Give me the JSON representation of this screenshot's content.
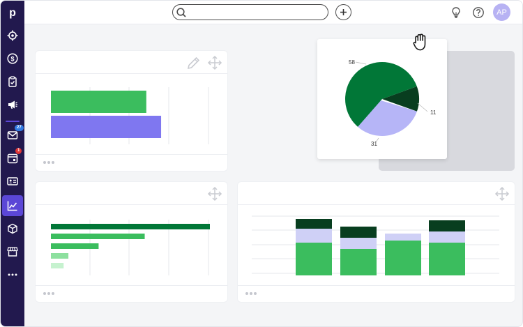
{
  "header": {
    "search": {
      "placeholder": "",
      "value": ""
    },
    "user_initials": "AP"
  },
  "sidebar": {
    "logo": "p",
    "items": [
      {
        "id": "leads",
        "icon": "target-icon"
      },
      {
        "id": "deals",
        "icon": "dollar-icon"
      },
      {
        "id": "activities",
        "icon": "clipboard-check-icon"
      },
      {
        "id": "campaigns",
        "icon": "megaphone-icon"
      },
      {
        "id": "mail",
        "icon": "envelope-icon",
        "badge": "27",
        "badge_color": "#317ae2"
      },
      {
        "id": "calendar",
        "icon": "calendar-icon",
        "badge": "1",
        "badge_color": "#e03535"
      },
      {
        "id": "contacts",
        "icon": "id-card-icon"
      },
      {
        "id": "insights",
        "icon": "chart-icon",
        "active": true
      },
      {
        "id": "products",
        "icon": "box-icon"
      },
      {
        "id": "marketplace",
        "icon": "store-icon"
      },
      {
        "id": "more",
        "icon": "more-icon"
      }
    ]
  },
  "colors": {
    "sidebar_bg": "#22194e",
    "accent": "#5b47d6",
    "green_dark": "#017737",
    "green": "#3bbd5e",
    "green_light": "#8de09f",
    "green_pale": "#c6f2cf",
    "green_darkest": "#083e1f",
    "lavender": "#bbbaf6",
    "purple": "#7f77f0"
  },
  "chart_data": [
    {
      "type": "bar",
      "orientation": "horizontal",
      "categories": [
        "",
        ""
      ],
      "values": [
        58,
        67
      ],
      "xlim": [
        0,
        80
      ],
      "colors": [
        "#3bbd5e",
        "#7f77f0"
      ]
    },
    {
      "type": "pie",
      "values": [
        58,
        31,
        11
      ],
      "labels": [
        "58",
        "31",
        "11"
      ],
      "colors": [
        "#017737",
        "#b6b5f7",
        "#083e1f"
      ]
    },
    {
      "type": "bar",
      "orientation": "horizontal",
      "categories": [
        "",
        "",
        "",
        "",
        ""
      ],
      "values": [
        100,
        59,
        30,
        11,
        8
      ],
      "xlim": [
        0,
        100
      ],
      "colors": [
        "#017737",
        "#3bbd5e",
        "#3bbd5e",
        "#8de09f",
        "#c6f2cf"
      ]
    },
    {
      "type": "bar",
      "stacked": true,
      "categories": [
        "",
        "",
        "",
        ""
      ],
      "series": [
        {
          "values": [
            47,
            38,
            50,
            47
          ],
          "color": "#3bbd5e"
        },
        {
          "values": [
            20,
            16,
            10,
            16
          ],
          "color": "#cfd0f6"
        },
        {
          "values": [
            14,
            16,
            0,
            16
          ],
          "color": "#083e1f"
        }
      ],
      "ylim": [
        0,
        100
      ]
    }
  ]
}
